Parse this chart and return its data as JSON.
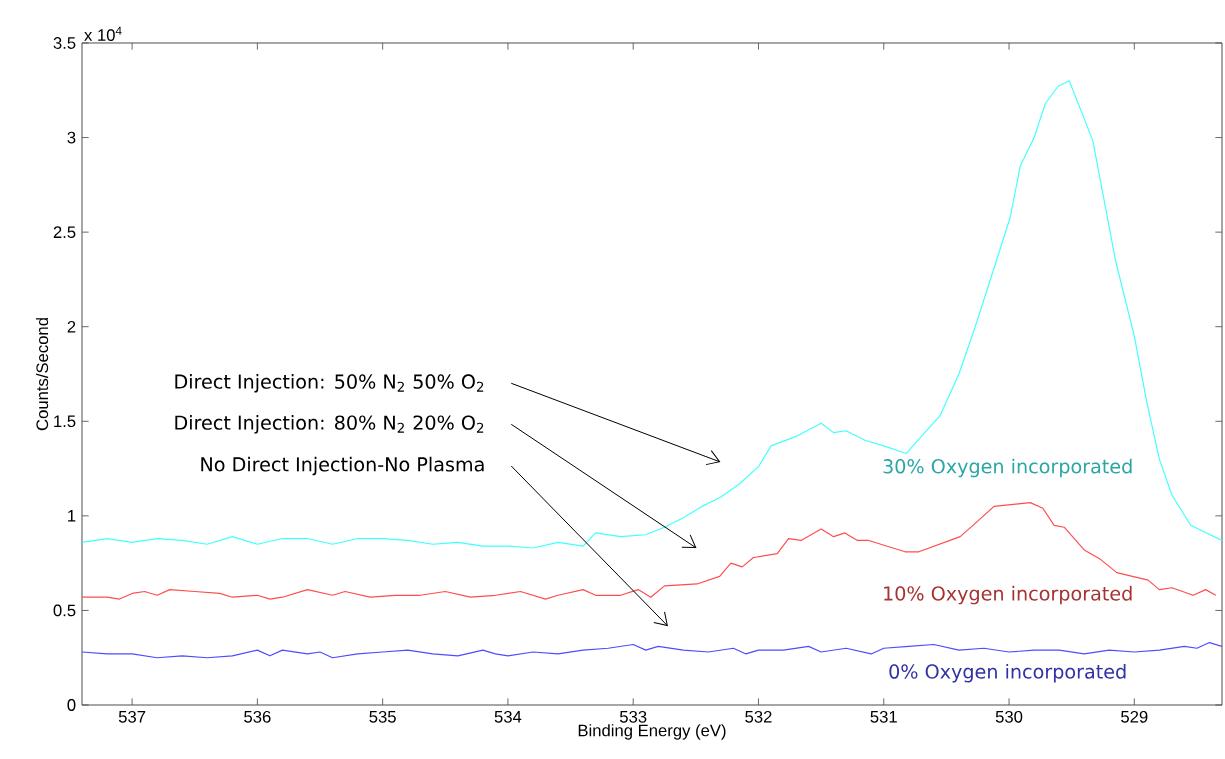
{
  "chart_data": {
    "type": "line",
    "xlabel": "Binding Energy (eV)",
    "ylabel": "Counts/Second",
    "xlim": [
      537.4,
      528.3
    ],
    "ylim": [
      0,
      3.5
    ],
    "xticks": [
      537,
      536,
      535,
      534,
      533,
      532,
      531,
      530,
      529
    ],
    "yticks": [
      0,
      0.5,
      1,
      1.5,
      2,
      2.5,
      3,
      3.5
    ],
    "grid": false,
    "legend": false,
    "annotations": [
      "x 10$^{4}$",
      "Direct Injection: 50% N$_{2}$ 50% O$_{2}$",
      "Direct Injection: 80% N$_{2}$ 20% O$_{2}$",
      "No Direct Injection-No Plasma"
    ],
    "series": [
      {
        "name": "30% Oxygen incorporated",
        "color": "#40ffff",
        "x": [
          537.4,
          537.2,
          537.0,
          536.8,
          536.6,
          536.4,
          536.2,
          536.0,
          535.8,
          535.6,
          535.4,
          535.2,
          535.0,
          534.8,
          534.6,
          534.4,
          534.2,
          534.0,
          533.8,
          533.6,
          533.4,
          533.3,
          533.1,
          532.9,
          532.75,
          532.6,
          532.45,
          532.3,
          532.15,
          532.0,
          531.9,
          531.7,
          531.5,
          531.4,
          531.3,
          531.15,
          531.0,
          530.82,
          530.7,
          530.55,
          530.4,
          530.27,
          530.1,
          529.99,
          529.91,
          529.8,
          529.71,
          529.61,
          529.52,
          529.4,
          529.33,
          529.25,
          529.15,
          529.0,
          528.9,
          528.8,
          528.7,
          528.55,
          528.3
        ],
        "values": [
          0.86,
          0.88,
          0.86,
          0.88,
          0.87,
          0.85,
          0.89,
          0.85,
          0.88,
          0.88,
          0.85,
          0.88,
          0.88,
          0.87,
          0.85,
          0.86,
          0.84,
          0.84,
          0.83,
          0.86,
          0.84,
          0.91,
          0.89,
          0.9,
          0.94,
          0.99,
          1.05,
          1.1,
          1.17,
          1.26,
          1.37,
          1.42,
          1.49,
          1.44,
          1.45,
          1.4,
          1.37,
          1.33,
          1.42,
          1.53,
          1.75,
          2.0,
          2.35,
          2.58,
          2.85,
          3.0,
          3.18,
          3.27,
          3.3,
          3.1,
          2.98,
          2.7,
          2.35,
          1.95,
          1.6,
          1.3,
          1.11,
          0.95,
          0.87
        ]
      },
      {
        "name": "10% Oxygen incorporated",
        "color": "#ff4d4d",
        "x": [
          537.4,
          537.2,
          537.1,
          537.0,
          536.9,
          536.8,
          536.7,
          536.5,
          536.3,
          536.2,
          536.0,
          535.9,
          535.8,
          535.6,
          535.4,
          535.3,
          535.1,
          534.9,
          534.7,
          534.5,
          534.3,
          534.1,
          533.9,
          533.7,
          533.6,
          533.4,
          533.3,
          533.1,
          532.96,
          532.86,
          532.75,
          532.49,
          532.31,
          532.22,
          532.13,
          532.04,
          531.85,
          531.76,
          531.66,
          531.5,
          531.4,
          531.31,
          531.21,
          531.12,
          530.83,
          530.72,
          530.39,
          530.27,
          530.12,
          529.83,
          529.73,
          529.64,
          529.56,
          529.4,
          529.27,
          529.14,
          528.89,
          528.8,
          528.7,
          528.53,
          528.43,
          528.35
        ],
        "values": [
          0.57,
          0.57,
          0.56,
          0.59,
          0.6,
          0.58,
          0.61,
          0.6,
          0.59,
          0.57,
          0.58,
          0.56,
          0.57,
          0.61,
          0.58,
          0.6,
          0.57,
          0.58,
          0.58,
          0.6,
          0.57,
          0.58,
          0.6,
          0.56,
          0.58,
          0.61,
          0.58,
          0.58,
          0.61,
          0.57,
          0.63,
          0.64,
          0.68,
          0.75,
          0.73,
          0.78,
          0.8,
          0.88,
          0.87,
          0.93,
          0.89,
          0.91,
          0.87,
          0.87,
          0.81,
          0.81,
          0.89,
          0.96,
          1.05,
          1.07,
          1.04,
          0.95,
          0.94,
          0.82,
          0.77,
          0.7,
          0.66,
          0.61,
          0.62,
          0.58,
          0.61,
          0.58
        ]
      },
      {
        "name": "0%  Oxygen incorporated",
        "color": "#4d4dff",
        "x": [
          537.4,
          537.2,
          537.0,
          536.8,
          536.6,
          536.4,
          536.2,
          536.0,
          535.9,
          535.8,
          535.6,
          535.5,
          535.4,
          535.2,
          535.0,
          534.8,
          534.6,
          534.4,
          534.2,
          534.1,
          534.0,
          533.8,
          533.6,
          533.4,
          533.2,
          533.0,
          532.9,
          532.8,
          532.6,
          532.4,
          532.2,
          532.1,
          532.0,
          531.8,
          531.6,
          531.5,
          531.3,
          531.1,
          531.0,
          530.8,
          530.6,
          530.4,
          530.2,
          530.0,
          529.8,
          529.6,
          529.4,
          529.2,
          529.0,
          528.8,
          528.6,
          528.5,
          528.4,
          528.3
        ],
        "values": [
          0.28,
          0.27,
          0.27,
          0.25,
          0.26,
          0.25,
          0.26,
          0.29,
          0.26,
          0.29,
          0.27,
          0.28,
          0.25,
          0.27,
          0.28,
          0.29,
          0.27,
          0.26,
          0.29,
          0.27,
          0.26,
          0.28,
          0.27,
          0.29,
          0.3,
          0.32,
          0.29,
          0.31,
          0.29,
          0.28,
          0.3,
          0.27,
          0.29,
          0.29,
          0.31,
          0.28,
          0.3,
          0.27,
          0.3,
          0.31,
          0.32,
          0.29,
          0.3,
          0.28,
          0.29,
          0.29,
          0.27,
          0.29,
          0.28,
          0.29,
          0.31,
          0.3,
          0.33,
          0.31
        ]
      }
    ]
  }
}
